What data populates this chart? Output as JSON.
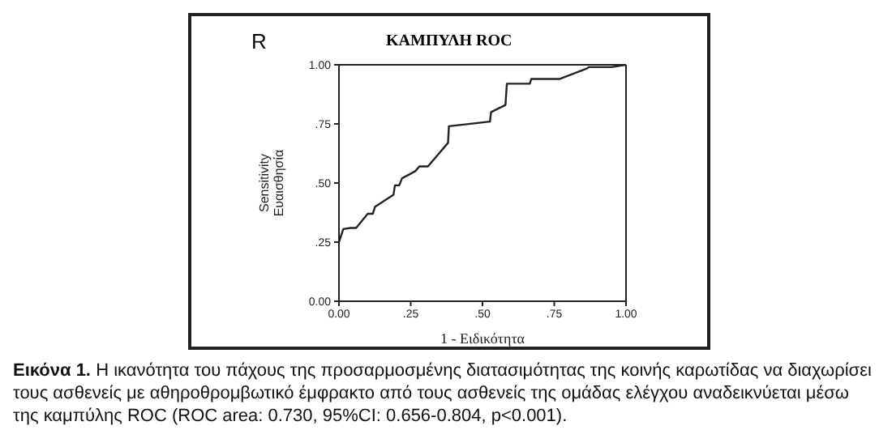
{
  "chart_data": {
    "type": "line",
    "title": "ΚΑΜΠΥΛΗ ROC",
    "xlabel": "1 - Ειδικότητα",
    "ylabel": "Sensitivity\nΕυαισθησία",
    "annotations": [
      "R",
      "Εικόνα 1.",
      "Η ικανότητα του πάχους της προσαρμοσμένης διατασιμότητας της κοινής καρωτίδας να διαχωρίσει τους ασθενείς με αθηροθρομβωτικό έμφρακτο από τους ασθενείς της ομάδας ελέγχου αναδεικνύεται μέσω της καμπύλης ROC (ROC area: 0.730, 95%CI: 0.656-0.804, p<0.001)."
    ],
    "x": [
      0,
      0.015,
      0.04,
      0.06,
      0.1,
      0.118,
      0.126,
      0.19,
      0.195,
      0.21,
      0.22,
      0.266,
      0.28,
      0.31,
      0.38,
      0.383,
      0.526,
      0.53,
      0.58,
      0.585,
      0.665,
      0.67,
      0.768,
      0.865,
      0.87,
      0.95,
      1
    ],
    "series": [
      {
        "color": "#222222",
        "values": [
          0.25,
          0.305,
          0.31,
          0.31,
          0.37,
          0.37,
          0.4,
          0.45,
          0.49,
          0.49,
          0.52,
          0.55,
          0.57,
          0.57,
          0.67,
          0.74,
          0.76,
          0.8,
          0.83,
          0.92,
          0.92,
          0.94,
          0.94,
          0.985,
          0.99,
          0.99,
          1
        ]
      }
    ],
    "xlim": [
      0,
      1
    ],
    "xticks": [
      {
        "value": 0,
        "label": "0.00"
      },
      {
        "value": 0.25,
        "label": ".25"
      },
      {
        "value": 0.5,
        "label": ".50"
      },
      {
        "value": 0.75,
        "label": ".75"
      },
      {
        "value": 1,
        "label": "1.00"
      }
    ],
    "ylim": [
      0,
      1
    ],
    "yticks": [
      {
        "value": 0,
        "label": "0.00"
      },
      {
        "value": 0.25,
        "label": ".25"
      },
      {
        "value": 0.5,
        "label": ".50"
      },
      {
        "value": 0.75,
        "label": ".75"
      },
      {
        "value": 1,
        "label": "1.00"
      }
    ],
    "legend": false,
    "marker": "none",
    "line_style": "solid"
  }
}
